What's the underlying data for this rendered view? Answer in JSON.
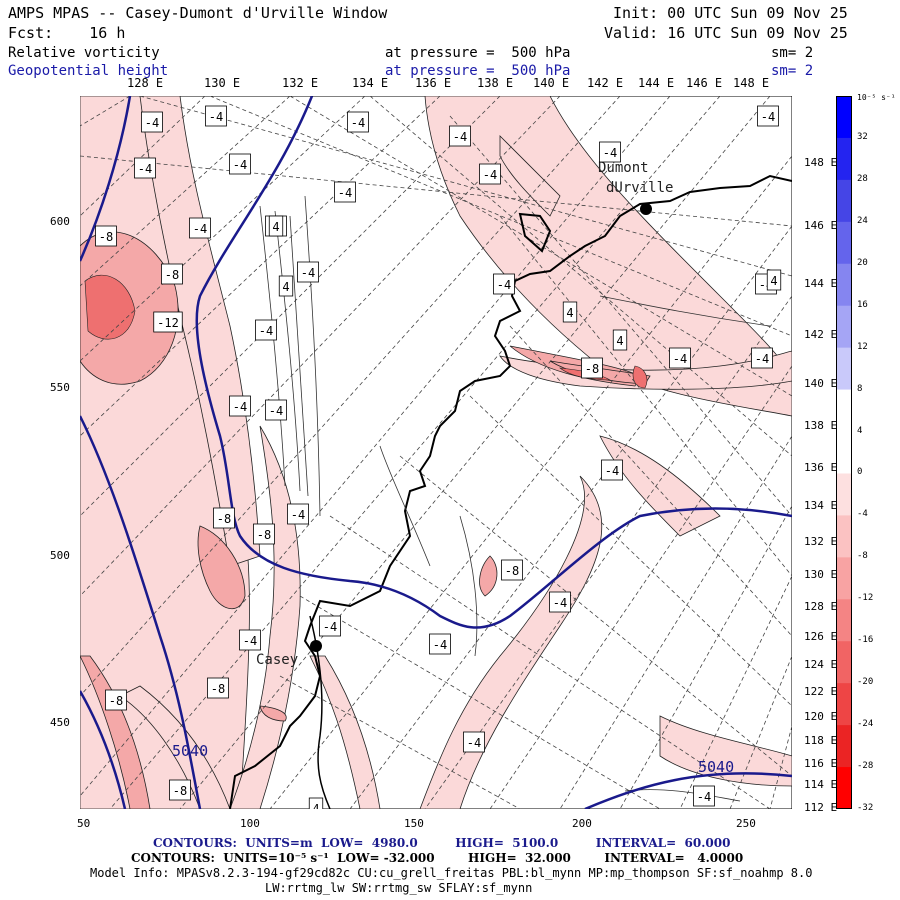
{
  "header": {
    "title": "AMPS MPAS -- Casey-Dumont d'Urville Window",
    "forecast": "Fcst:    16 h",
    "init": "Init: 00 UTC Sun 09 Nov 25",
    "valid": "Valid: 16 UTC Sun 09 Nov 25",
    "field1": {
      "name": "Relative vorticity",
      "level": "at pressure =  500 hPa",
      "smooth": "sm= 2"
    },
    "field2": {
      "name": "Geopotential height",
      "level": "at pressure =  500 hPa",
      "smooth": "sm= 2"
    }
  },
  "map": {
    "top_longitude_labels": [
      "128 E",
      "130 E",
      "132 E",
      "134 E",
      "136 E",
      "138 E",
      "140 E",
      "142 E",
      "144 E",
      "146 E",
      "148 E"
    ],
    "right_latitude_labels": [
      "148 E",
      "146 E",
      "144 E",
      "142 E",
      "140 E",
      "138 E",
      "136 E",
      "134 E",
      "132 E",
      "130 E",
      "128 E",
      "126 E",
      "124 E",
      "122 E",
      "120 E",
      "118 E",
      "116 E",
      "114 E",
      "112 E"
    ],
    "x_ticks": [
      "50",
      "100",
      "150",
      "200",
      "250"
    ],
    "y_ticks": [
      "600",
      "550",
      "500",
      "450"
    ],
    "stations": [
      {
        "name": "Dumont",
        "name2": "dUrville"
      },
      {
        "name": "Casey"
      }
    ],
    "height_contour_labels": [
      "5040",
      "5040"
    ],
    "vorticity_labels": [
      "-4",
      "-4",
      "-4",
      "-4",
      "-4",
      "-4",
      "-4",
      "-4",
      "-4",
      "-4",
      "-4",
      "-4",
      "-4",
      "-4",
      "-4",
      "-4",
      "-4",
      "-4",
      "-4",
      "-4",
      "-4",
      "-4",
      "-4",
      "-4",
      "-4",
      "-4",
      "-4",
      "-4",
      "-8",
      "-8",
      "-8",
      "-8",
      "-8",
      "-8",
      "-8",
      "-8",
      "-8",
      "-12",
      "4",
      "4",
      "4",
      "4",
      "4",
      "4"
    ]
  },
  "colorbar": {
    "unit": "10⁻⁵ s⁻¹",
    "labels": [
      "32",
      "28",
      "24",
      "20",
      "16",
      "12",
      "8",
      "4",
      "0",
      "-4",
      "-8",
      "-12",
      "-16",
      "-20",
      "-24",
      "-28",
      "-32"
    ],
    "colors": [
      "#0000ff",
      "#2424f0",
      "#4545e6",
      "#6464ec",
      "#8585f0",
      "#a5a5f5",
      "#c9c9fa",
      "#ffffff",
      "#ffffff",
      "#fde0e0",
      "#fbc2c2",
      "#f8a3a3",
      "#f48484",
      "#f16464",
      "#ee4545",
      "#eb2424",
      "#ff0000"
    ]
  },
  "footer": {
    "line1": "CONTOURS:  UNITS=m  LOW=  4980.0         HIGH=  5100.0         INTERVAL=  60.000",
    "line2": "CONTOURS:  UNITS=10⁻⁵ s⁻¹  LOW= -32.000        HIGH=  32.000        INTERVAL=   4.0000",
    "line3": "Model Info: MPASv8.2.3-194-gf29cd82c CU:cu_grell_freitas PBL:bl_mynn MP:mp_thompson SF:sf_noahmp 8.0",
    "line4": "LW:rrtmg_lw SW:rrtmg_sw SFLAY:sf_mynn"
  }
}
